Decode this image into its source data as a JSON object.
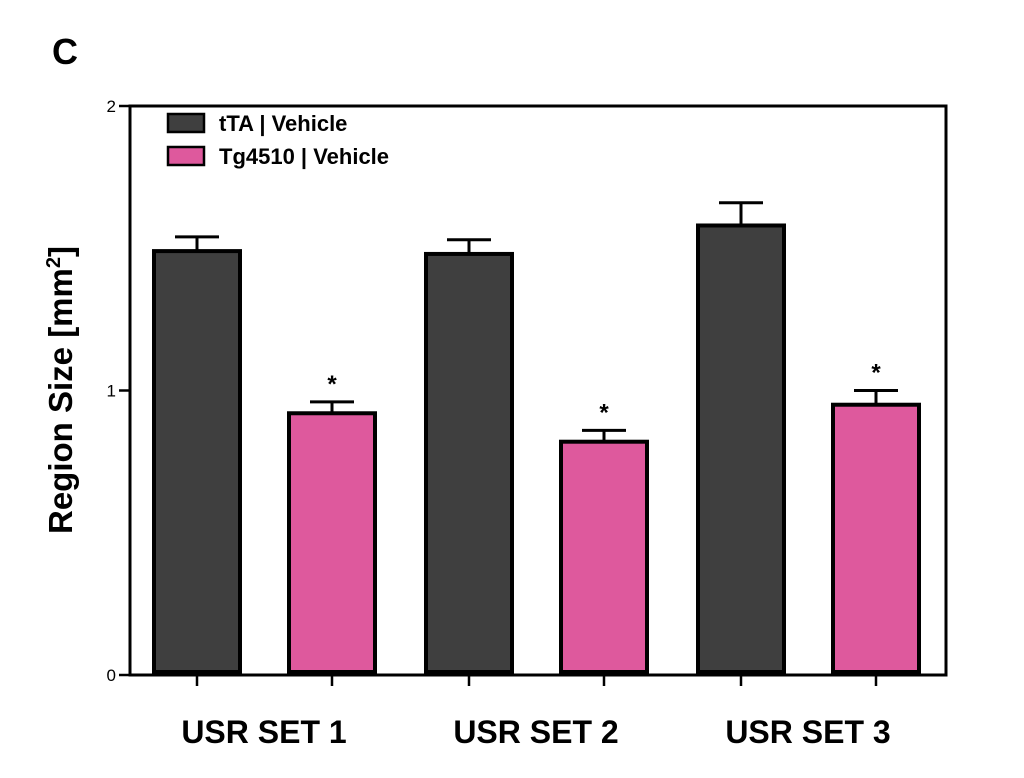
{
  "panel_label": "C",
  "chart_data": {
    "type": "bar",
    "categories": [
      "USR SET 1",
      "USR SET 2",
      "USR SET 3"
    ],
    "series": [
      {
        "name": "tTA | Vehicle",
        "color": "#3f3f3f",
        "values": [
          1.49,
          1.48,
          1.58
        ],
        "errors": [
          0.05,
          0.05,
          0.08
        ],
        "significance": [
          "",
          "",
          ""
        ]
      },
      {
        "name": "Tg4510 | Vehicle",
        "color": "#de599d",
        "values": [
          0.92,
          0.82,
          0.95
        ],
        "errors": [
          0.04,
          0.04,
          0.05
        ],
        "significance": [
          "*",
          "*",
          "*"
        ]
      }
    ],
    "ylabel": "Region Size [mm",
    "ylabel_sup": "2",
    "ylabel_suffix": "]",
    "ylim": [
      0,
      2
    ],
    "yticks": [
      0,
      1,
      2
    ],
    "ytick_labels": [
      "0",
      "1",
      "2"
    ],
    "grid": false,
    "legend_position": "top-left",
    "error_bars": "upper"
  }
}
